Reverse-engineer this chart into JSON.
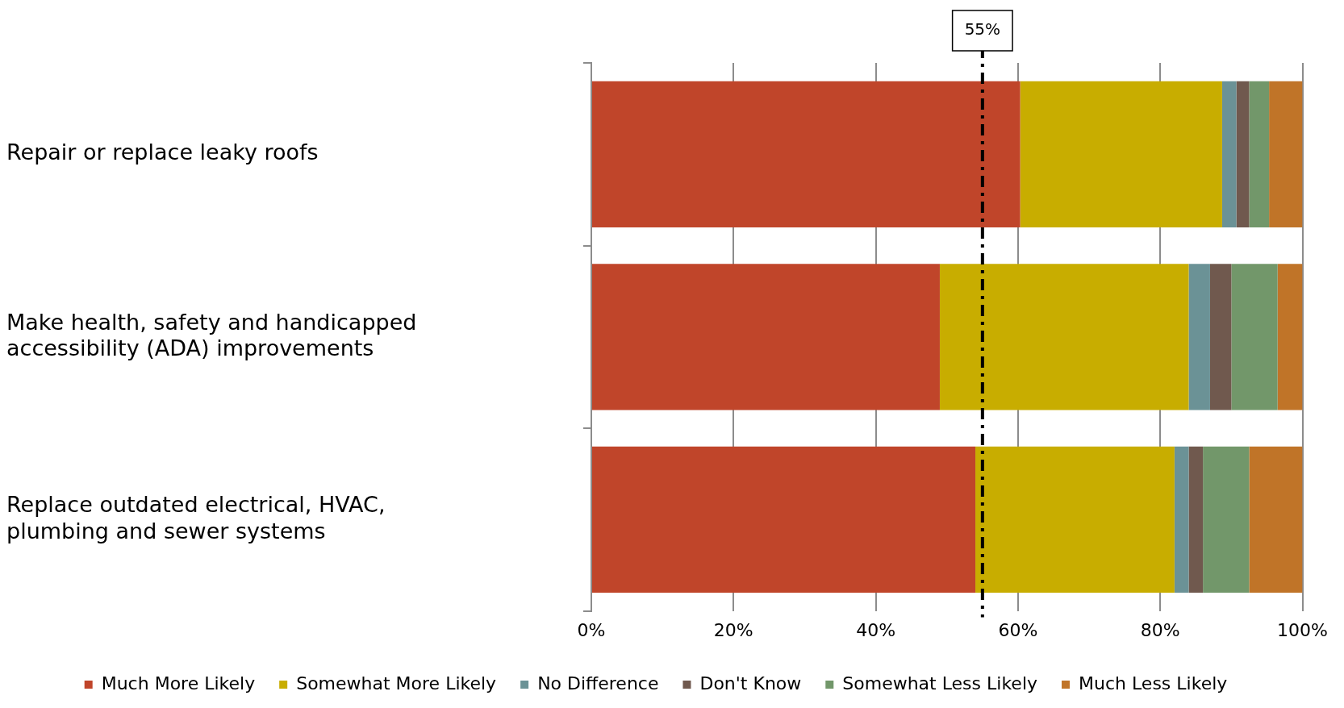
{
  "chart_data": {
    "type": "bar",
    "orientation": "horizontal",
    "stacked": true,
    "categories": [
      "Repair or replace leaky roofs",
      "Make health, safety and handicapped accessibility (ADA) improvements",
      "Replace outdated electrical, HVAC, plumbing and sewer systems"
    ],
    "series": [
      {
        "name": "Much More Likely",
        "color": "#c0452a",
        "values": [
          60.3,
          49,
          54
        ]
      },
      {
        "name": "Somewhat More Likely",
        "color": "#c8ad00",
        "values": [
          28.4,
          35,
          28
        ]
      },
      {
        "name": "No Difference",
        "color": "#6b9296",
        "values": [
          2,
          3,
          2
        ]
      },
      {
        "name": "Don't Know",
        "color": "#70594e",
        "values": [
          1.8,
          3,
          2
        ]
      },
      {
        "name": "Somewhat Less Likely",
        "color": "#72976a",
        "values": [
          2.8,
          6.5,
          6.5
        ]
      },
      {
        "name": "Much Less Likely",
        "color": "#c07428",
        "values": [
          4.7,
          3.5,
          7.5
        ]
      }
    ],
    "xlim": [
      0,
      100
    ],
    "xticks": [
      {
        "value": 0,
        "label": "0%"
      },
      {
        "value": 20,
        "label": "20%"
      },
      {
        "value": 40,
        "label": "40%"
      },
      {
        "value": 60,
        "label": "60%"
      },
      {
        "value": 80,
        "label": "80%"
      },
      {
        "value": 100,
        "label": "100%"
      }
    ],
    "ref_lines": [
      {
        "axis": "x",
        "value": 55,
        "label": "55%",
        "color": "#000000",
        "line_style": "dashed"
      }
    ],
    "grid": "x",
    "legend": "bottom"
  }
}
